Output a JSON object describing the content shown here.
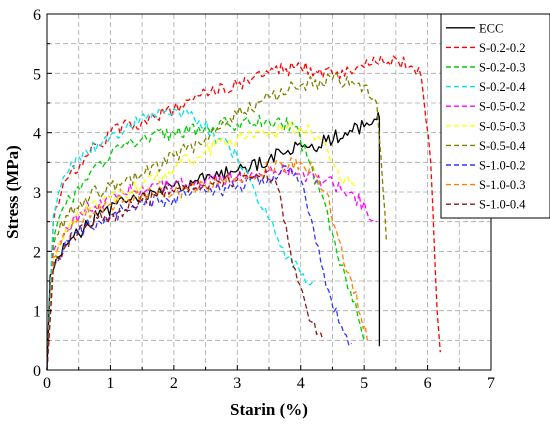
{
  "chart_data": {
    "type": "line",
    "xlabel": "Starin (%)",
    "ylabel": "Stress (MPa)",
    "xlim": [
      0,
      7
    ],
    "ylim": [
      0,
      6
    ],
    "xticks": [
      "0",
      "1",
      "2",
      "3",
      "4",
      "5",
      "6",
      "7"
    ],
    "yticks": [
      "0",
      "1",
      "2",
      "3",
      "4",
      "5",
      "6"
    ],
    "grid": true,
    "legend_position": "top-right",
    "series": [
      {
        "name": "ECC",
        "color": "#000000",
        "dash": "solid",
        "x": [
          0,
          0.05,
          0.15,
          0.3,
          0.5,
          0.8,
          1.1,
          1.4,
          1.7,
          2.0,
          2.3,
          2.6,
          2.9,
          3.2,
          3.5,
          3.8,
          4.1,
          4.4,
          4.7,
          5.0,
          5.2,
          5.24,
          5.24
        ],
        "y": [
          0,
          1.6,
          1.9,
          2.1,
          2.3,
          2.6,
          2.8,
          2.9,
          3.0,
          3.1,
          3.15,
          3.25,
          3.35,
          3.4,
          3.55,
          3.7,
          3.75,
          3.85,
          4.0,
          4.1,
          4.22,
          4.25,
          0.4
        ]
      },
      {
        "name": "S-0.2-0.2",
        "color": "#ff0000",
        "dash": "dashed",
        "x": [
          0,
          0.1,
          0.3,
          0.6,
          1.0,
          1.5,
          2.0,
          2.5,
          3.0,
          3.5,
          4.0,
          4.5,
          5.0,
          5.3,
          5.5,
          5.7,
          5.9,
          6.05,
          6.15,
          6.2
        ],
        "y": [
          0,
          2.5,
          3.2,
          3.6,
          4.0,
          4.2,
          4.4,
          4.7,
          4.8,
          5.0,
          5.1,
          5.0,
          5.1,
          5.2,
          5.25,
          5.1,
          4.95,
          3.5,
          1.0,
          0.3
        ]
      },
      {
        "name": "S-0.2-0.3",
        "color": "#00cc00",
        "dash": "dashed",
        "x": [
          0,
          0.1,
          0.3,
          0.6,
          1.0,
          1.5,
          2.0,
          2.5,
          3.0,
          3.5,
          3.9,
          4.1,
          4.3,
          4.5,
          4.7,
          4.9,
          5.0
        ],
        "y": [
          0,
          2.2,
          2.8,
          3.2,
          3.6,
          3.9,
          4.0,
          4.1,
          4.15,
          4.2,
          4.1,
          3.6,
          3.0,
          2.3,
          1.6,
          0.9,
          0.5
        ]
      },
      {
        "name": "S-0.2-0.4",
        "color": "#00e5e5",
        "dash": "dashed",
        "x": [
          0,
          0.1,
          0.3,
          0.5,
          0.8,
          1.2,
          1.6,
          2.0,
          2.4,
          2.7,
          3.0,
          3.2,
          3.4,
          3.6,
          3.8,
          4.0,
          4.2
        ],
        "y": [
          0,
          2.6,
          3.3,
          3.6,
          3.8,
          4.0,
          4.3,
          4.4,
          4.2,
          3.9,
          3.6,
          3.2,
          2.7,
          2.3,
          1.9,
          1.6,
          1.5
        ]
      },
      {
        "name": "S-0.5-0.2",
        "color": "#ff00ff",
        "dash": "dashed",
        "x": [
          0,
          0.1,
          0.3,
          0.6,
          1.0,
          1.5,
          2.0,
          2.5,
          3.0,
          3.3,
          3.6,
          4.0,
          4.4,
          4.8,
          5.2
        ],
        "y": [
          0,
          2.0,
          2.4,
          2.7,
          2.9,
          3.1,
          3.15,
          3.2,
          3.25,
          3.3,
          3.35,
          3.3,
          3.2,
          3.0,
          2.5
        ]
      },
      {
        "name": "S-0.5-0.3",
        "color": "#ffff00",
        "dash": "dashed",
        "x": [
          0,
          0.1,
          0.3,
          0.6,
          1.0,
          1.5,
          2.0,
          2.5,
          3.0,
          3.5,
          4.0,
          4.3,
          4.5,
          4.7,
          4.85
        ],
        "y": [
          0,
          1.9,
          2.4,
          2.7,
          2.9,
          3.1,
          3.4,
          3.7,
          3.9,
          4.0,
          4.1,
          3.9,
          3.5,
          3.2,
          3.1
        ]
      },
      {
        "name": "S-0.5-0.4",
        "color": "#808000",
        "dash": "dashed",
        "x": [
          0,
          0.1,
          0.3,
          0.6,
          1.0,
          1.5,
          2.0,
          2.5,
          3.0,
          3.5,
          4.0,
          4.5,
          5.0,
          5.2,
          5.3,
          5.35
        ],
        "y": [
          0,
          2.1,
          2.6,
          2.9,
          3.1,
          3.3,
          3.6,
          3.9,
          4.3,
          4.6,
          4.8,
          4.9,
          4.8,
          4.5,
          3.0,
          2.2
        ]
      },
      {
        "name": "S-1.0-0.2",
        "color": "#3333ff",
        "dash": "dashed",
        "x": [
          0,
          0.1,
          0.3,
          0.6,
          1.0,
          1.5,
          2.0,
          2.5,
          3.0,
          3.5,
          3.8,
          4.0,
          4.2,
          4.4,
          4.6,
          4.8
        ],
        "y": [
          0,
          1.8,
          2.2,
          2.4,
          2.6,
          2.8,
          2.9,
          3.0,
          3.1,
          3.25,
          3.35,
          3.2,
          2.4,
          1.4,
          0.8,
          0.45
        ]
      },
      {
        "name": "S-1.0-0.3",
        "color": "#ff8000",
        "dash": "dashed",
        "x": [
          0,
          0.1,
          0.3,
          0.6,
          1.0,
          1.5,
          2.0,
          2.5,
          3.0,
          3.5,
          4.0,
          4.2,
          4.4,
          4.6,
          4.8,
          4.95,
          5.05
        ],
        "y": [
          0,
          1.9,
          2.3,
          2.6,
          2.8,
          2.95,
          3.0,
          3.1,
          3.2,
          3.4,
          3.5,
          3.4,
          3.0,
          2.2,
          1.5,
          0.9,
          0.5
        ]
      },
      {
        "name": "S-1.0-0.4",
        "color": "#8b1a1a",
        "dash": "dashed",
        "x": [
          0,
          0.1,
          0.3,
          0.6,
          1.0,
          1.5,
          2.0,
          2.5,
          3.0,
          3.3,
          3.6,
          3.7,
          3.8,
          3.95,
          4.1,
          4.25,
          4.35
        ],
        "y": [
          0,
          1.7,
          2.1,
          2.4,
          2.6,
          2.85,
          3.0,
          3.1,
          3.2,
          3.3,
          3.2,
          2.8,
          2.2,
          1.5,
          1.0,
          0.6,
          0.5
        ]
      }
    ]
  }
}
